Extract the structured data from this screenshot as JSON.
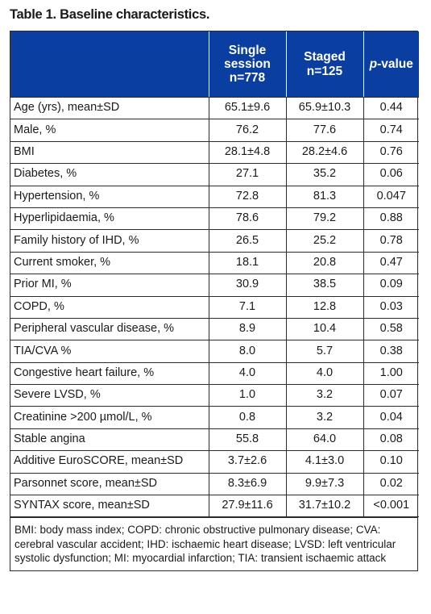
{
  "title": "Table 1. Baseline characteristics.",
  "header": {
    "col_single_line1": "Single",
    "col_single_line2": "session",
    "col_single_line3": "n=778",
    "col_staged_line1": "Staged",
    "col_staged_line2": "n=125",
    "col_p_italic": "p",
    "col_p_rest": "-value"
  },
  "rows": [
    {
      "label": "Age (yrs), mean±SD",
      "single": "65.1±9.6",
      "staged": "65.9±10.3",
      "p": "0.44"
    },
    {
      "label": "Male, %",
      "single": "76.2",
      "staged": "77.6",
      "p": "0.74"
    },
    {
      "label": "BMI",
      "single": "28.1±4.8",
      "staged": "28.2±4.6",
      "p": "0.76"
    },
    {
      "label": "Diabetes, %",
      "single": "27.1",
      "staged": "35.2",
      "p": "0.06"
    },
    {
      "label": "Hypertension, %",
      "single": "72.8",
      "staged": "81.3",
      "p": "0.047"
    },
    {
      "label": "Hyperlipidaemia, %",
      "single": "78.6",
      "staged": "79.2",
      "p": "0.88"
    },
    {
      "label": "Family history of IHD, %",
      "single": "26.5",
      "staged": "25.2",
      "p": "0.78"
    },
    {
      "label": "Current smoker, %",
      "single": "18.1",
      "staged": "20.8",
      "p": "0.47"
    },
    {
      "label": "Prior MI, %",
      "single": "30.9",
      "staged": "38.5",
      "p": "0.09"
    },
    {
      "label": "COPD, %",
      "single": "7.1",
      "staged": "12.8",
      "p": "0.03"
    },
    {
      "label": "Peripheral vascular disease, %",
      "single": "8.9",
      "staged": "10.4",
      "p": "0.58"
    },
    {
      "label": "TIA/CVA %",
      "single": "8.0",
      "staged": "5.7",
      "p": "0.38"
    },
    {
      "label": "Congestive heart failure, %",
      "single": "4.0",
      "staged": "4.0",
      "p": "1.00"
    },
    {
      "label": "Severe LVSD, %",
      "single": "1.0",
      "staged": "3.2",
      "p": "0.07"
    },
    {
      "label": "Creatinine >200 µmol/L, %",
      "single": "0.8",
      "staged": "3.2",
      "p": "0.04"
    },
    {
      "label": "Stable angina",
      "single": "55.8",
      "staged": "64.0",
      "p": "0.08"
    },
    {
      "label": "Additive EuroSCORE, mean±SD",
      "single": "3.7±2.6",
      "staged": "4.1±3.0",
      "p": "0.10"
    },
    {
      "label": "Parsonnet score, mean±SD",
      "single": "8.3±6.9",
      "staged": "9.9±7.3",
      "p": "0.02"
    },
    {
      "label": "SYNTAX score, mean±SD",
      "single": "27.9±11.6",
      "staged": "31.7±10.2",
      "p": "<0.001"
    }
  ],
  "footnote": "BMI: body mass index; COPD: chronic obstructive pulmonary disease; CVA: cerebral vascular accident; IHD: ischaemic heart disease; LVSD: left ventricular systolic dysfunction; MI: myocardial infarction; TIA: transient ischaemic attack",
  "colors": {
    "header_bg": "#0a3ea0",
    "header_text": "#ffffff",
    "border": "#2b2b2b"
  }
}
